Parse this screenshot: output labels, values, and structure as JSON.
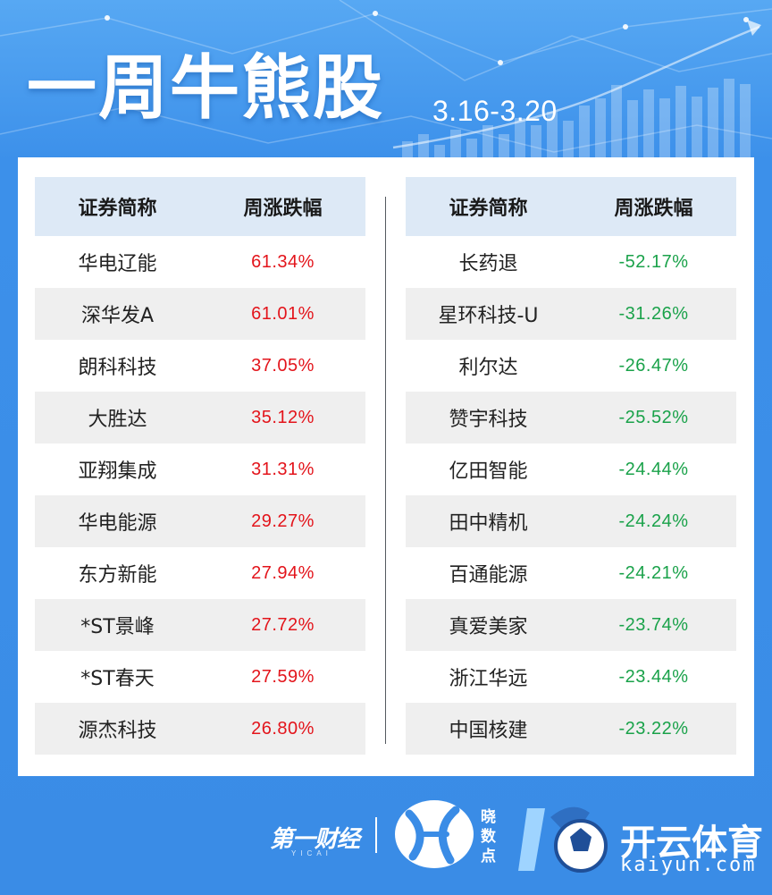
{
  "header": {
    "title": "一周牛熊股",
    "date_range": "3.16-3.20"
  },
  "colors": {
    "background": "#3d8ee6",
    "header_row": "#dde9f6",
    "gain": "#e3141b",
    "loss": "#1aa24a"
  },
  "gainers": {
    "col_name": "证券简称",
    "col_change": "周涨跌幅",
    "rows": [
      {
        "name": "华电辽能",
        "change": "61.34%"
      },
      {
        "name": "深华发A",
        "change": "61.01%"
      },
      {
        "name": "朗科科技",
        "change": "37.05%"
      },
      {
        "name": "大胜达",
        "change": "35.12%"
      },
      {
        "name": "亚翔集成",
        "change": "31.31%"
      },
      {
        "name": "华电能源",
        "change": "29.27%"
      },
      {
        "name": "东方新能",
        "change": "27.94%"
      },
      {
        "name": "*ST景峰",
        "change": "27.72%"
      },
      {
        "name": "*ST春天",
        "change": "27.59%"
      },
      {
        "name": "源杰科技",
        "change": "26.80%"
      }
    ]
  },
  "losers": {
    "col_name": "证券简称",
    "col_change": "周涨跌幅",
    "rows": [
      {
        "name": "长药退",
        "change": "-52.17%"
      },
      {
        "name": "星环科技-U",
        "change": "-31.26%"
      },
      {
        "name": "利尔达",
        "change": "-26.47%"
      },
      {
        "name": "赞宇科技",
        "change": "-25.52%"
      },
      {
        "name": "亿田智能",
        "change": "-24.44%"
      },
      {
        "name": "田中精机",
        "change": "-24.24%"
      },
      {
        "name": "百通能源",
        "change": "-24.21%"
      },
      {
        "name": "真爱美家",
        "change": "-23.74%"
      },
      {
        "name": "浙江华远",
        "change": "-23.44%"
      },
      {
        "name": "中国核建",
        "change": "-23.22%"
      }
    ]
  },
  "footer": {
    "yicai_logo": "第一财经",
    "yicai_sub": "YICAI",
    "xiao_logo": "晓数点",
    "kaiyun_name": "开云体育",
    "kaiyun_url": "kaiyun.com"
  }
}
